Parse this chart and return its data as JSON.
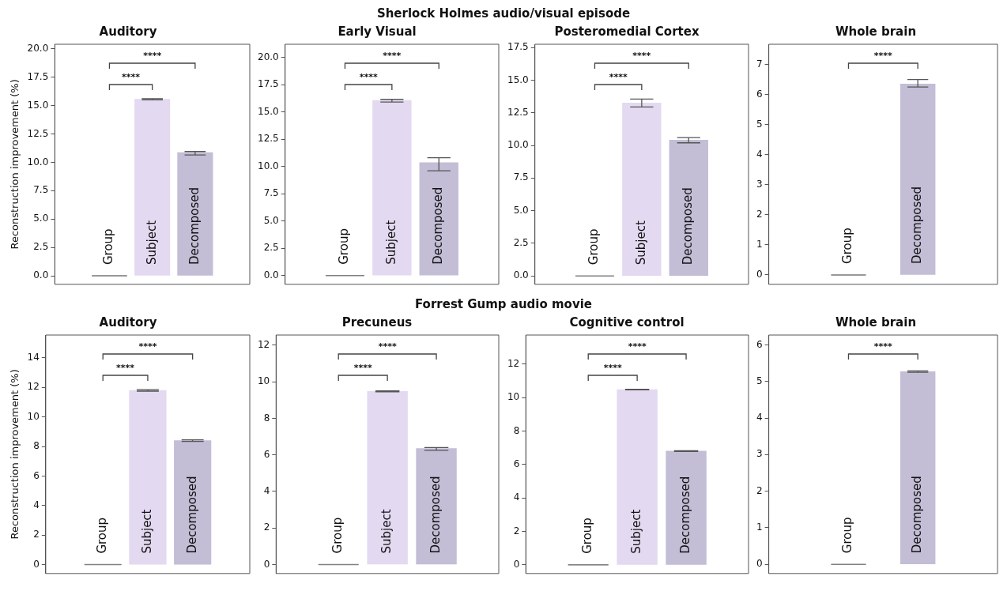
{
  "chart_data": [
    {
      "type": "bar",
      "title": "Auditory",
      "ylabel": "Reconstruction improvement (%)",
      "categories": [
        "Group",
        "Subject",
        "Decomposed"
      ],
      "values": [
        0,
        15.55,
        10.85
      ],
      "colors": [
        "#808080",
        "#e3d9f1",
        "#c3bdd6"
      ],
      "errors": [
        null,
        [
          15.5,
          15.6
        ],
        [
          10.65,
          10.95
        ]
      ],
      "ylim": [
        -0.75,
        20.4
      ],
      "yticks": [
        {
          "value": 0,
          "label": "0.0"
        },
        {
          "value": 2.5,
          "label": "2.5"
        },
        {
          "value": 5,
          "label": "5.0"
        },
        {
          "value": 7.5,
          "label": "7.5"
        },
        {
          "value": 10,
          "label": "10.0"
        },
        {
          "value": 12.5,
          "label": "12.5"
        },
        {
          "value": 15,
          "label": "15.0"
        },
        {
          "value": 17.5,
          "label": "17.5"
        },
        {
          "value": 20,
          "label": "20.0"
        }
      ],
      "annotations": [
        "****",
        "****"
      ]
    },
    {
      "type": "bar",
      "subtitle": "Sherlock Holmes audio/visual episode",
      "title": "Early Visual",
      "categories": [
        "Group",
        "Subject",
        "Decomposed"
      ],
      "values": [
        0,
        16.05,
        10.35
      ],
      "colors": [
        "#808080",
        "#e3d9f1",
        "#c3bdd6"
      ],
      "errors": [
        null,
        [
          15.9,
          16.15
        ],
        [
          9.6,
          10.8
        ]
      ],
      "ylim": [
        -0.8,
        21.2
      ],
      "yticks": [
        {
          "value": 0,
          "label": "0.0"
        },
        {
          "value": 2.5,
          "label": "2.5"
        },
        {
          "value": 5,
          "label": "5.0"
        },
        {
          "value": 7.5,
          "label": "7.5"
        },
        {
          "value": 10,
          "label": "10.0"
        },
        {
          "value": 12.5,
          "label": "12.5"
        },
        {
          "value": 15,
          "label": "15.0"
        },
        {
          "value": 17.5,
          "label": "17.5"
        },
        {
          "value": 20,
          "label": "20.0"
        }
      ],
      "annotations": [
        "****",
        "****"
      ]
    },
    {
      "type": "bar",
      "title": "Posteromedial Cortex",
      "categories": [
        "Group",
        "Subject",
        "Decomposed"
      ],
      "values": [
        0,
        13.25,
        10.4
      ],
      "colors": [
        "#808080",
        "#e3d9f1",
        "#c3bdd6"
      ],
      "errors": [
        null,
        [
          12.95,
          13.55
        ],
        [
          10.2,
          10.6
        ]
      ],
      "ylim": [
        -0.64,
        17.75
      ],
      "yticks": [
        {
          "value": 0,
          "label": "0.0"
        },
        {
          "value": 2.5,
          "label": "2.5"
        },
        {
          "value": 5,
          "label": "5.0"
        },
        {
          "value": 7.5,
          "label": "7.5"
        },
        {
          "value": 10,
          "label": "10.0"
        },
        {
          "value": 12.5,
          "label": "12.5"
        },
        {
          "value": 15,
          "label": "15.0"
        },
        {
          "value": 17.5,
          "label": "17.5"
        }
      ],
      "annotations": [
        "****",
        "****"
      ]
    },
    {
      "type": "bar",
      "title": "Whole brain",
      "categories": [
        "Group",
        "Decomposed"
      ],
      "values": [
        0,
        6.35
      ],
      "colors": [
        "#808080",
        "#c3bdd6"
      ],
      "errors": [
        null,
        [
          6.25,
          6.5
        ]
      ],
      "ylim": [
        -0.31,
        7.67
      ],
      "yticks": [
        0,
        1,
        2,
        3,
        4,
        5,
        6,
        7
      ],
      "annotations": [
        "****"
      ]
    },
    {
      "type": "bar",
      "title": "Auditory",
      "ylabel": "Reconstruction improvement (%)",
      "categories": [
        "Group",
        "Subject",
        "Decomposed"
      ],
      "values": [
        0,
        11.8,
        8.4
      ],
      "colors": [
        "#808080",
        "#e3d9f1",
        "#c3bdd6"
      ],
      "errors": [
        null,
        [
          11.75,
          11.85
        ],
        [
          8.35,
          8.45
        ]
      ],
      "ylim": [
        -0.6,
        15.55
      ],
      "yticks": [
        0,
        2,
        4,
        6,
        8,
        10,
        12,
        14
      ],
      "annotations": [
        "****",
        "****"
      ]
    },
    {
      "type": "bar",
      "subtitle": "Forrest Gump audio movie",
      "title": "Precuneus",
      "categories": [
        "Group",
        "Subject",
        "Decomposed"
      ],
      "values": [
        0,
        9.48,
        6.35
      ],
      "colors": [
        "#808080",
        "#e3d9f1",
        "#c3bdd6"
      ],
      "errors": [
        null,
        [
          9.45,
          9.5
        ],
        [
          6.25,
          6.4
        ]
      ],
      "ylim": [
        -0.49,
        12.56
      ],
      "yticks": [
        0,
        2,
        4,
        6,
        8,
        10,
        12
      ],
      "annotations": [
        "****",
        "****"
      ]
    },
    {
      "type": "bar",
      "title": "Cognitive control",
      "categories": [
        "Group",
        "Subject",
        "Decomposed"
      ],
      "values": [
        0,
        10.48,
        6.8
      ],
      "colors": [
        "#808080",
        "#e3d9f1",
        "#c3bdd6"
      ],
      "errors": [
        null,
        [
          10.46,
          10.5
        ],
        [
          6.78,
          6.82
        ]
      ],
      "ylim": [
        -0.52,
        13.74
      ],
      "yticks": [
        0,
        2,
        4,
        6,
        8,
        10,
        12
      ],
      "annotations": [
        "****",
        "****"
      ]
    },
    {
      "type": "bar",
      "title": "Whole brain",
      "categories": [
        "Group",
        "Decomposed"
      ],
      "values": [
        0,
        5.27
      ],
      "colors": [
        "#808080",
        "#c3bdd6"
      ],
      "errors": [
        null,
        [
          5.25,
          5.29
        ]
      ],
      "ylim": [
        -0.25,
        6.27
      ],
      "yticks": [
        0,
        1,
        2,
        3,
        4,
        5,
        6
      ],
      "annotations": [
        "****"
      ]
    }
  ]
}
